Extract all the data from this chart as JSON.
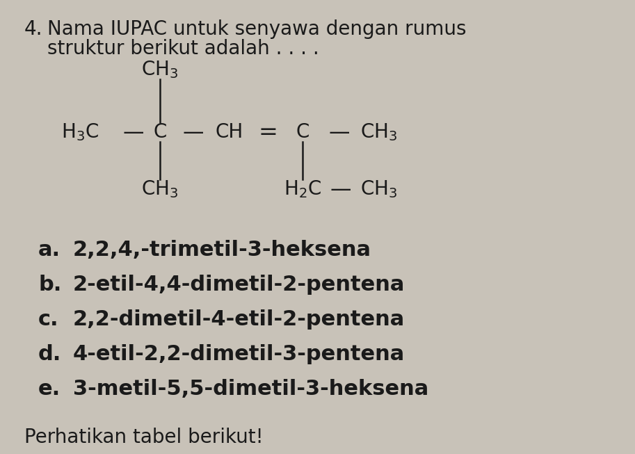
{
  "background_color": "#c8c2b8",
  "title_number": "4.",
  "title_text": "Nama IUPAC untuk senyawa dengan rumus",
  "subtitle_text": "struktur berikut adalah . . . .",
  "choices": [
    [
      "a.",
      "2,2,4,-trimetil-3-heksena"
    ],
    [
      "b.",
      "2-etil-4,4-dimetil-2-pentena"
    ],
    [
      "c.",
      "2,2-dimetil-4-etil-2-pentena"
    ],
    [
      "d.",
      "4-etil-2,2-dimetil-3-pentena"
    ],
    [
      "e.",
      "3-metil-5,5-dimetil-3-heksena"
    ]
  ],
  "footer_text": "Perhatikan tabel berikut!",
  "font_color": "#1a1a1a",
  "fs_title": 20,
  "fs_struct": 20,
  "fs_choices": 22
}
